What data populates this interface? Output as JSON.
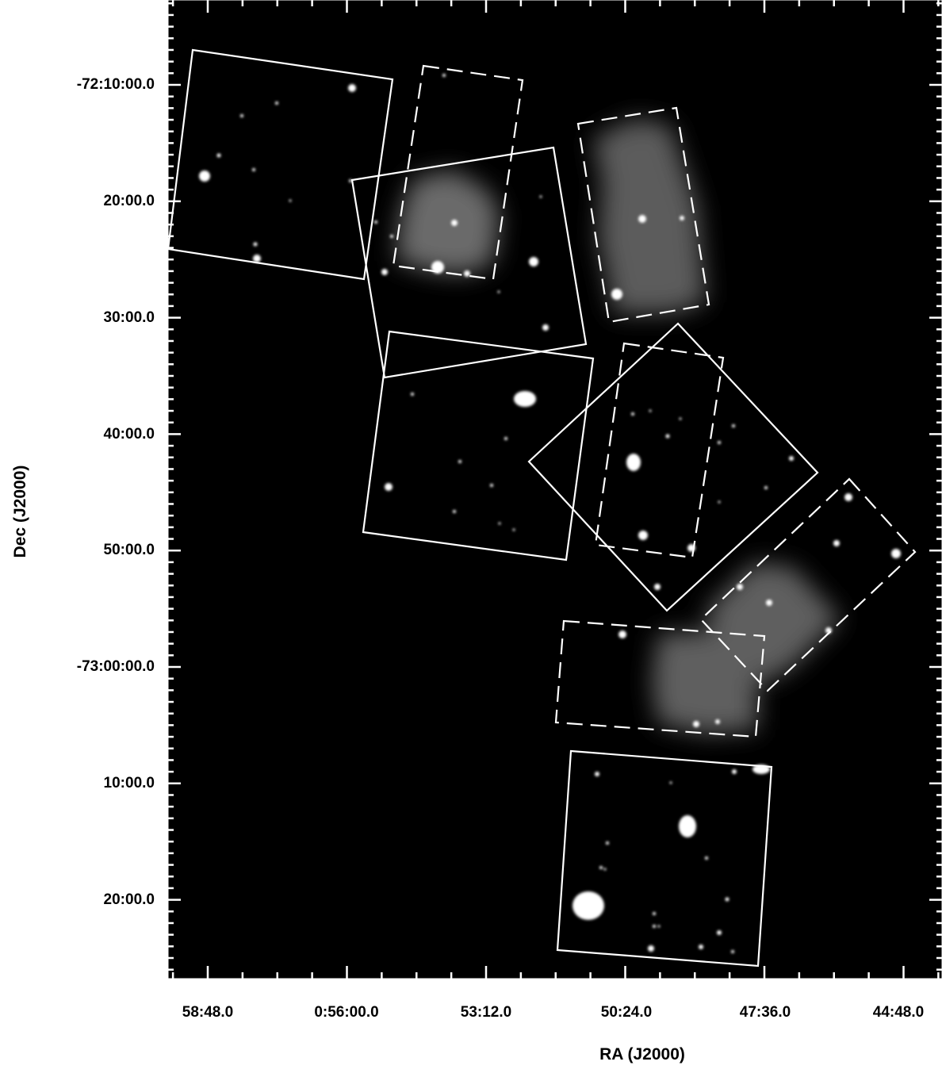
{
  "plot": {
    "x_axis_title": "RA (J2000)",
    "y_axis_title": "Dec (J2000)",
    "x_tick_labels": [
      "58:48.0",
      "0:56:00.0",
      "53:12.0",
      "50:24.0",
      "47:36.0",
      "44:48.0"
    ],
    "y_tick_labels": [
      "-72:10:00.0",
      "20:00.0",
      "30:00.0",
      "40:00.0",
      "50:00.0",
      "-73:00:00.0",
      "10:00.0",
      "20:00.0"
    ]
  },
  "colors": {
    "page_background": "#ffffff",
    "image_background": "#000000",
    "field_outline": "#ffffff",
    "diffuse_emission": "#6a6a6a"
  },
  "field_styles": {
    "solid": "solid outline",
    "dashed": "dashed outline"
  }
}
